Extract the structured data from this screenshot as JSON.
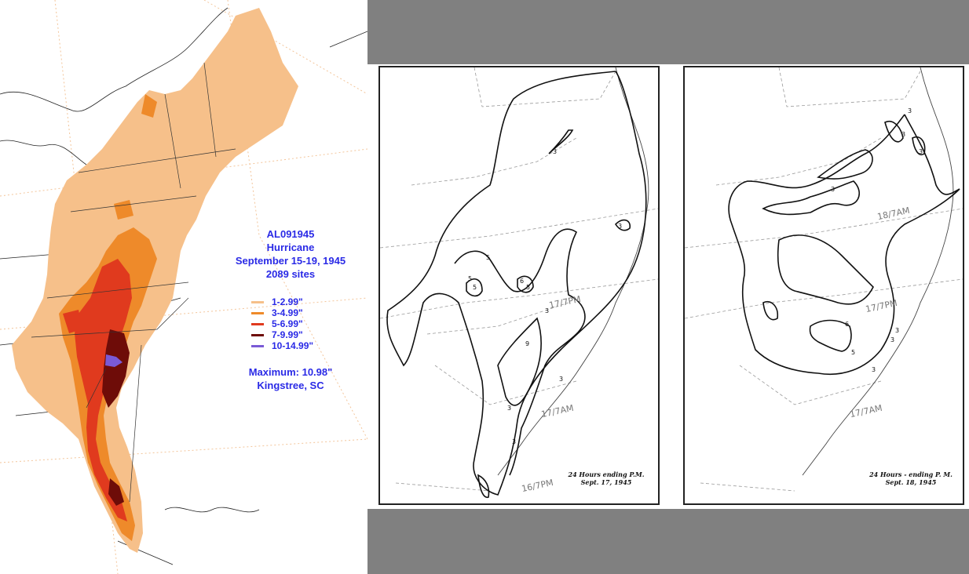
{
  "rain_map": {
    "storm_id": "AL091945",
    "storm_type": "Hurricane",
    "dates": "September 15-19, 1945",
    "sites": "2089 sites",
    "legend": [
      {
        "label": "1-2.99\"",
        "color": "#f6c08a"
      },
      {
        "label": "3-4.99\"",
        "color": "#ee8a2a"
      },
      {
        "label": "5-6.99\"",
        "color": "#e03a1e"
      },
      {
        "label": "7-9.99\"",
        "color": "#6e0c08"
      },
      {
        "label": "10-14.99\"",
        "color": "#7a5ad6"
      }
    ],
    "maximum": "Maximum: 10.98\"",
    "maximum_location": "Kingstree, SC",
    "text_color": "#2a2ae6"
  },
  "scans": [
    {
      "caption_line1": "24 Hours  ending  P.M.",
      "caption_line2": "Sept. 17, 1945",
      "annotations": [
        "17/7PM",
        "17/7AM",
        "16/7PM"
      ],
      "contour_labels": [
        "3",
        "3",
        "5",
        "5",
        "5",
        "6",
        "5",
        "3",
        "9",
        "3",
        "3",
        "3"
      ]
    },
    {
      "caption_line1": "24 Hours - ending  P. M.",
      "caption_line2": "Sept. 18, 1945",
      "annotations": [
        "18/7AM",
        "17/7PM",
        "17/7AM"
      ],
      "contour_labels": [
        "3",
        "3",
        "3",
        "3",
        "3",
        "6",
        "5",
        "3",
        "3"
      ]
    }
  ],
  "colors": {
    "gray_band": "#808080"
  }
}
